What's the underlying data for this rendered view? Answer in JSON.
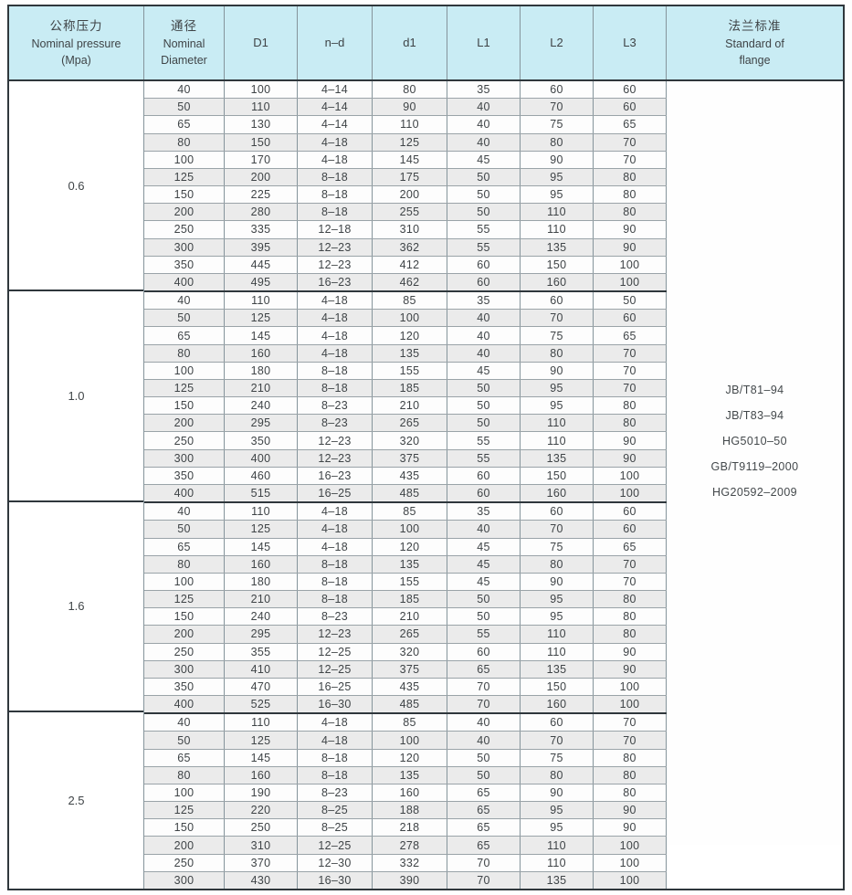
{
  "colors": {
    "header_bg": "#c9ecf4",
    "alt_row_bg": "#ebebeb",
    "grid_line": "#85949b",
    "heavy_line": "#2f373c",
    "text": "#3f4447"
  },
  "header": {
    "columns": [
      {
        "zh": "公称压力",
        "en": "Nominal pressure",
        "unit": "(Mpa)"
      },
      {
        "zh": "通径",
        "en": "Nominal",
        "en2": "Diameter"
      },
      {
        "label": "D1"
      },
      {
        "label": "n–d"
      },
      {
        "label": "d1"
      },
      {
        "label": "L1"
      },
      {
        "label": "L2"
      },
      {
        "label": "L3"
      },
      {
        "zh": "法兰标准",
        "en": "Standard of",
        "en2": "flange"
      }
    ]
  },
  "groups": [
    {
      "pressure": "0.6",
      "rows": [
        [
          "40",
          "100",
          "4–14",
          "80",
          "35",
          "60",
          "60"
        ],
        [
          "50",
          "110",
          "4–14",
          "90",
          "40",
          "70",
          "60"
        ],
        [
          "65",
          "130",
          "4–14",
          "110",
          "40",
          "75",
          "65"
        ],
        [
          "80",
          "150",
          "4–18",
          "125",
          "40",
          "80",
          "70"
        ],
        [
          "100",
          "170",
          "4–18",
          "145",
          "45",
          "90",
          "70"
        ],
        [
          "125",
          "200",
          "8–18",
          "175",
          "50",
          "95",
          "80"
        ],
        [
          "150",
          "225",
          "8–18",
          "200",
          "50",
          "95",
          "80"
        ],
        [
          "200",
          "280",
          "8–18",
          "255",
          "50",
          "110",
          "80"
        ],
        [
          "250",
          "335",
          "12–18",
          "310",
          "55",
          "110",
          "90"
        ],
        [
          "300",
          "395",
          "12–23",
          "362",
          "55",
          "135",
          "90"
        ],
        [
          "350",
          "445",
          "12–23",
          "412",
          "60",
          "150",
          "100"
        ],
        [
          "400",
          "495",
          "16–23",
          "462",
          "60",
          "160",
          "100"
        ]
      ]
    },
    {
      "pressure": "1.0",
      "rows": [
        [
          "40",
          "110",
          "4–18",
          "85",
          "35",
          "60",
          "50"
        ],
        [
          "50",
          "125",
          "4–18",
          "100",
          "40",
          "70",
          "60"
        ],
        [
          "65",
          "145",
          "4–18",
          "120",
          "40",
          "75",
          "65"
        ],
        [
          "80",
          "160",
          "4–18",
          "135",
          "40",
          "80",
          "70"
        ],
        [
          "100",
          "180",
          "8–18",
          "155",
          "45",
          "90",
          "70"
        ],
        [
          "125",
          "210",
          "8–18",
          "185",
          "50",
          "95",
          "70"
        ],
        [
          "150",
          "240",
          "8–23",
          "210",
          "50",
          "95",
          "80"
        ],
        [
          "200",
          "295",
          "8–23",
          "265",
          "50",
          "110",
          "80"
        ],
        [
          "250",
          "350",
          "12–23",
          "320",
          "55",
          "110",
          "90"
        ],
        [
          "300",
          "400",
          "12–23",
          "375",
          "55",
          "135",
          "90"
        ],
        [
          "350",
          "460",
          "16–23",
          "435",
          "60",
          "150",
          "100"
        ],
        [
          "400",
          "515",
          "16–25",
          "485",
          "60",
          "160",
          "100"
        ]
      ]
    },
    {
      "pressure": "1.6",
      "rows": [
        [
          "40",
          "110",
          "4–18",
          "85",
          "35",
          "60",
          "60"
        ],
        [
          "50",
          "125",
          "4–18",
          "100",
          "40",
          "70",
          "60"
        ],
        [
          "65",
          "145",
          "4–18",
          "120",
          "45",
          "75",
          "65"
        ],
        [
          "80",
          "160",
          "8–18",
          "135",
          "45",
          "80",
          "70"
        ],
        [
          "100",
          "180",
          "8–18",
          "155",
          "45",
          "90",
          "70"
        ],
        [
          "125",
          "210",
          "8–18",
          "185",
          "50",
          "95",
          "80"
        ],
        [
          "150",
          "240",
          "8–23",
          "210",
          "50",
          "95",
          "80"
        ],
        [
          "200",
          "295",
          "12–23",
          "265",
          "55",
          "110",
          "80"
        ],
        [
          "250",
          "355",
          "12–25",
          "320",
          "60",
          "110",
          "90"
        ],
        [
          "300",
          "410",
          "12–25",
          "375",
          "65",
          "135",
          "90"
        ],
        [
          "350",
          "470",
          "16–25",
          "435",
          "70",
          "150",
          "100"
        ],
        [
          "400",
          "525",
          "16–30",
          "485",
          "70",
          "160",
          "100"
        ]
      ]
    },
    {
      "pressure": "2.5",
      "rows": [
        [
          "40",
          "110",
          "4–18",
          "85",
          "40",
          "60",
          "70"
        ],
        [
          "50",
          "125",
          "4–18",
          "100",
          "40",
          "70",
          "70"
        ],
        [
          "65",
          "145",
          "8–18",
          "120",
          "50",
          "75",
          "80"
        ],
        [
          "80",
          "160",
          "8–18",
          "135",
          "50",
          "80",
          "80"
        ],
        [
          "100",
          "190",
          "8–23",
          "160",
          "65",
          "90",
          "80"
        ],
        [
          "125",
          "220",
          "8–25",
          "188",
          "65",
          "95",
          "90"
        ],
        [
          "150",
          "250",
          "8–25",
          "218",
          "65",
          "95",
          "90"
        ],
        [
          "200",
          "310",
          "12–25",
          "278",
          "65",
          "110",
          "100"
        ],
        [
          "250",
          "370",
          "12–30",
          "332",
          "70",
          "110",
          "100"
        ],
        [
          "300",
          "430",
          "16–30",
          "390",
          "70",
          "135",
          "100"
        ]
      ]
    }
  ],
  "standards": [
    "JB/T81–94",
    "JB/T83–94",
    "HG5010–50",
    "GB/T9119–2000",
    "HG20592–2009"
  ]
}
